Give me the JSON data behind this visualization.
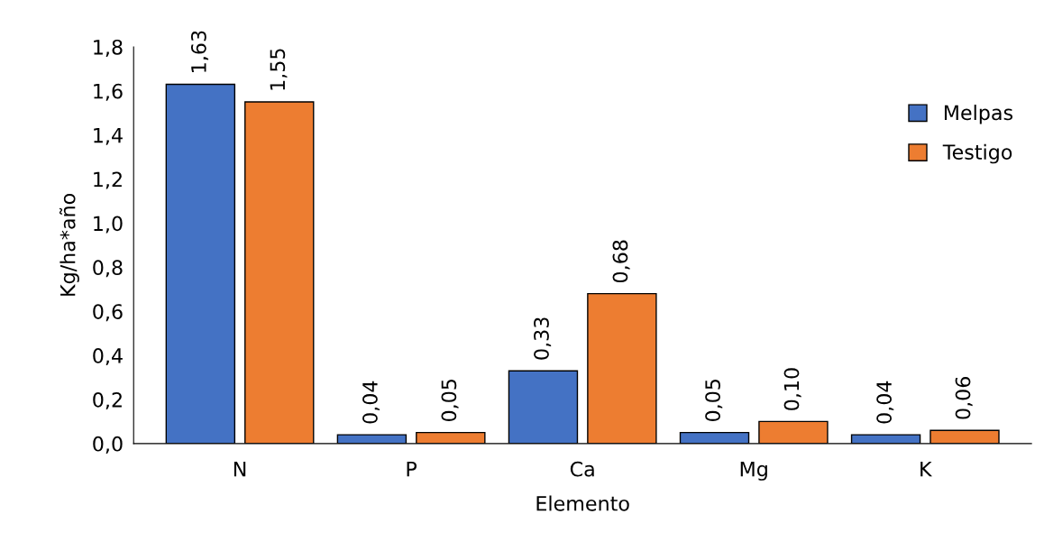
{
  "chart_data": {
    "type": "bar",
    "xlabel": "Elemento",
    "ylabel": "Kg/ha*año",
    "categories": [
      "N",
      "P",
      "Ca",
      "Mg",
      "K"
    ],
    "series": [
      {
        "name": "Melpas",
        "color": "#4472c4",
        "values": [
          1.63,
          0.04,
          0.33,
          0.05,
          0.04
        ],
        "value_labels": [
          "1,63",
          "0,04",
          "0,33",
          "0,05",
          "0,04"
        ]
      },
      {
        "name": "Testigo",
        "color": "#ed7d31",
        "values": [
          1.55,
          0.05,
          0.68,
          0.1,
          0.06
        ],
        "value_labels": [
          "1,55",
          "0,05",
          "0,68",
          "0,10",
          "0,06"
        ]
      }
    ],
    "ylim": [
      0,
      1.8
    ],
    "yticks": [
      {
        "value": 0,
        "label": "0,0"
      },
      {
        "value": 0.2,
        "label": "0,2"
      },
      {
        "value": 0.4,
        "label": "0,4"
      },
      {
        "value": 0.6,
        "label": "0,6"
      },
      {
        "value": 0.8,
        "label": "0,8"
      },
      {
        "value": 1.0,
        "label": "1,0"
      },
      {
        "value": 1.2,
        "label": "1,2"
      },
      {
        "value": 1.4,
        "label": "1,4"
      },
      {
        "value": 1.6,
        "label": "1,6"
      },
      {
        "value": 1.8,
        "label": "1,8"
      }
    ],
    "grid": false,
    "legend": "right"
  }
}
